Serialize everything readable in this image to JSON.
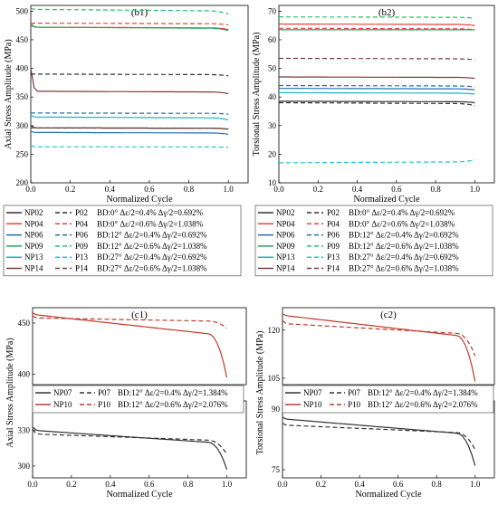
{
  "chart_data": [
    {
      "panel": "(b1)",
      "type": "line",
      "xlabel": "Normalized Cycle",
      "ylabel": "Axial Stress Amplitude (MPa)",
      "xlim": [
        0,
        1.1
      ],
      "ylim": [
        200,
        510
      ],
      "xticks": [
        0.0,
        0.2,
        0.4,
        0.6,
        0.8,
        1.0
      ],
      "yticks": [
        200,
        250,
        300,
        350,
        400,
        450,
        500
      ],
      "series": [
        {
          "name": "NP02",
          "color": "#333333",
          "dash": "solid",
          "start": 300,
          "plateau": 296,
          "end": 294
        },
        {
          "name": "NP04",
          "color": "#e8413e",
          "dash": "solid",
          "start": 475,
          "plateau": 472,
          "end": 468
        },
        {
          "name": "NP06",
          "color": "#1f6fb5",
          "dash": "solid",
          "start": 290,
          "plateau": 288,
          "end": 285
        },
        {
          "name": "NP09",
          "color": "#27a35a",
          "dash": "solid",
          "start": 478,
          "plateau": 472,
          "end": 466
        },
        {
          "name": "NP13",
          "color": "#1fb3c4",
          "dash": "solid",
          "start": 318,
          "plateau": 315,
          "end": 310
        },
        {
          "name": "NP14",
          "color": "#7b3a3a",
          "dash": "solid",
          "start": 400,
          "plateau": 360,
          "end": 356
        },
        {
          "name": "P02",
          "color": "#333333",
          "dash": "dash",
          "start": 390,
          "plateau": 390,
          "end": 387
        },
        {
          "name": "P04",
          "color": "#e8413e",
          "dash": "dash",
          "start": 479,
          "plateau": 479,
          "end": 476
        },
        {
          "name": "P06",
          "color": "#1f6fb5",
          "dash": "dash",
          "start": 322,
          "plateau": 322,
          "end": 320
        },
        {
          "name": "P09",
          "color": "#27c06b",
          "dash": "dash",
          "start": 505,
          "plateau": 503,
          "end": 495
        },
        {
          "name": "P13",
          "color": "#1fc6d3",
          "dash": "dash",
          "start": 265,
          "plateau": 263,
          "end": 262
        },
        {
          "name": "P14",
          "color": "#7b3a3a",
          "dash": "dash",
          "start": 296,
          "plateau": 296,
          "end": 294
        }
      ]
    },
    {
      "panel": "(b2)",
      "type": "line",
      "xlabel": "Normalized Cycle",
      "ylabel": "Torsional Stress Amplitude (MPa)",
      "xlim": [
        0,
        1.1
      ],
      "ylim": [
        10,
        72
      ],
      "xticks": [
        0.0,
        0.2,
        0.4,
        0.6,
        0.8,
        1.0
      ],
      "yticks": [
        10,
        20,
        30,
        40,
        50,
        60,
        70
      ],
      "series": [
        {
          "name": "NP02",
          "color": "#333333",
          "dash": "solid",
          "start": 38.5,
          "plateau": 38.5,
          "end": 38
        },
        {
          "name": "NP04",
          "color": "#e8413e",
          "dash": "solid",
          "start": 65.5,
          "plateau": 65.5,
          "end": 65
        },
        {
          "name": "NP06",
          "color": "#1f6fb5",
          "dash": "solid",
          "start": 43,
          "plateau": 43,
          "end": 42.5
        },
        {
          "name": "NP09",
          "color": "#27a35a",
          "dash": "solid",
          "start": 63.5,
          "plateau": 63.5,
          "end": 63.5
        },
        {
          "name": "NP13",
          "color": "#1fb3c4",
          "dash": "solid",
          "start": 41.5,
          "plateau": 41.5,
          "end": 41
        },
        {
          "name": "NP14",
          "color": "#7b3a3a",
          "dash": "solid",
          "start": 47,
          "plateau": 47,
          "end": 46.5
        },
        {
          "name": "P02",
          "color": "#333333",
          "dash": "dash",
          "start": 38,
          "plateau": 38,
          "end": 37
        },
        {
          "name": "P04",
          "color": "#e8413e",
          "dash": "dash",
          "start": 64,
          "plateau": 64,
          "end": 63.5
        },
        {
          "name": "P06",
          "color": "#1f6fb5",
          "dash": "dash",
          "start": 44,
          "plateau": 44,
          "end": 43.5
        },
        {
          "name": "P09",
          "color": "#27c06b",
          "dash": "dash",
          "start": 68,
          "plateau": 68,
          "end": 67.5
        },
        {
          "name": "P13",
          "color": "#1fc6d3",
          "dash": "dash",
          "start": 17,
          "plateau": 17,
          "end": 18
        },
        {
          "name": "P14",
          "color": "#7b3a3a",
          "dash": "dash",
          "start": 53.5,
          "plateau": 53.5,
          "end": 53
        }
      ]
    },
    {
      "panel": "(c1)",
      "type": "line",
      "xlabel": "Normalized Cycle",
      "ylabel": "Axial Stress Amplitude (MPa)",
      "xlim": [
        0,
        1.1
      ],
      "broken_axis": true,
      "ylim_upper": [
        390,
        465
      ],
      "ylim_lower": [
        290,
        355
      ],
      "xticks": [
        0.0,
        0.2,
        0.4,
        0.6,
        0.8,
        1.0
      ],
      "yticks_upper": [
        400,
        450
      ],
      "yticks_lower": [
        300,
        330
      ],
      "series": [
        {
          "name": "NP07",
          "color": "#333333",
          "dash": "solid",
          "start": 333,
          "plateau": 330,
          "end": 297
        },
        {
          "name": "NP10",
          "color": "#c0392b",
          "dash": "solid",
          "start": 460,
          "plateau": 458,
          "end": 397
        },
        {
          "name": "P07",
          "color": "#333333",
          "dash": "dash",
          "start": 331,
          "plateau": 327,
          "end": 310
        },
        {
          "name": "P10",
          "color": "#c0392b",
          "dash": "dash",
          "start": 457,
          "plateau": 455,
          "end": 445
        }
      ]
    },
    {
      "panel": "(c2)",
      "type": "line",
      "xlabel": "Normalized Cycle",
      "ylabel": "Torsional Stress Amplitude (MPa)",
      "xlim": [
        0,
        1.1
      ],
      "broken_axis": true,
      "ylim_upper": [
        103,
        127
      ],
      "ylim_lower": [
        73,
        92
      ],
      "xticks": [
        0.0,
        0.2,
        0.4,
        0.6,
        0.8,
        1.0
      ],
      "yticks_upper": [
        105,
        120
      ],
      "yticks_lower": [
        75,
        90
      ],
      "series": [
        {
          "name": "NP07",
          "color": "#333333",
          "dash": "solid",
          "start": 88,
          "plateau": 87.5,
          "end": 76
        },
        {
          "name": "NP10",
          "color": "#c0392b",
          "dash": "solid",
          "start": 125,
          "plateau": 124.5,
          "end": 104
        },
        {
          "name": "P07",
          "color": "#333333",
          "dash": "dash",
          "start": 86.5,
          "plateau": 86,
          "end": 80
        },
        {
          "name": "P10",
          "color": "#c0392b",
          "dash": "dash",
          "start": 123,
          "plateau": 122,
          "end": 112
        }
      ]
    }
  ],
  "legend_b": {
    "np": [
      "NP02",
      "NP04",
      "NP06",
      "NP09",
      "NP13",
      "NP14"
    ],
    "p": [
      "P02",
      "P04",
      "P06",
      "P09",
      "P13",
      "P14"
    ],
    "np_colors": [
      "#333333",
      "#e8413e",
      "#1f6fb5",
      "#27a35a",
      "#1fb3c4",
      "#7b3a3a"
    ],
    "p_colors": [
      "#333333",
      "#e8413e",
      "#1f6fb5",
      "#27c06b",
      "#1fc6d3",
      "#7b3a3a"
    ],
    "conditions_b1": [
      "BD:0°   Δε/2=0.4% Δγ/2=0.692%",
      "BD:0°   Δε/2=0.6% Δγ/2=1.038%",
      "BD:12° Δε/2=0.4% Δγ/2=0.692%",
      "BD:12° Δε/2=0.6% Δγ/2=1.038%",
      "BD:27° Δε/2=0.4% Δγ/2=0.692%",
      "BD:27° Δε/2=0.6% Δγ/2=1.038%"
    ],
    "conditions_b2": [
      "BD:0°   Δε/2=0.4% Δγ/2=0.692%",
      "BD:0°   Δε/2=0.6% Δγ/2=1.038%",
      "BD:12° Δε/2=0.4% Δγ/2=0.692%",
      "BD:12° Δε/2=0.6% Δγ/2=1.038%",
      "BD:27° Δε/2=0.4% Δγ/2=0.692%",
      "BD:27° Δε/2=0.6% Δγ/2=1.038%"
    ]
  },
  "legend_c": {
    "np": [
      "NP07",
      "NP10"
    ],
    "p": [
      "P07",
      "P10"
    ],
    "colors": [
      "#333333",
      "#c0392b"
    ],
    "conditions": [
      "BD:12°  Δε/2=0.4% Δγ/2=1.384%",
      "BD:12°  Δε/2=0.6% Δγ/2=2.076%"
    ]
  }
}
